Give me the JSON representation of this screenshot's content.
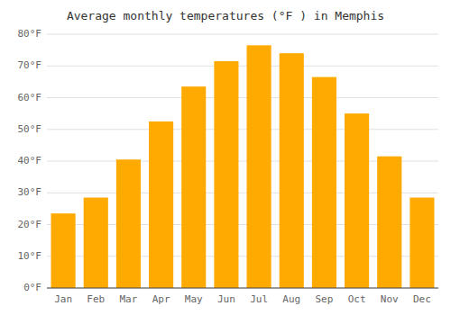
{
  "chart_data": {
    "type": "bar",
    "title": "Average monthly temperatures (°F ) in Memphis",
    "categories": [
      "Jan",
      "Feb",
      "Mar",
      "Apr",
      "May",
      "Jun",
      "Jul",
      "Aug",
      "Sep",
      "Oct",
      "Nov",
      "Dec"
    ],
    "values": [
      23.5,
      28.5,
      40.5,
      52.5,
      63.5,
      71.5,
      76.5,
      74.0,
      66.5,
      55.0,
      41.5,
      28.5
    ],
    "color": "#FFAA00",
    "ylim": [
      0,
      80
    ],
    "yticks": [
      {
        "value": 0,
        "label": "0°F"
      },
      {
        "value": 10,
        "label": "10°F"
      },
      {
        "value": 20,
        "label": "20°F"
      },
      {
        "value": 30,
        "label": "30°F"
      },
      {
        "value": 40,
        "label": "40°F"
      },
      {
        "value": 50,
        "label": "50°F"
      },
      {
        "value": 60,
        "label": "60°F"
      },
      {
        "value": 70,
        "label": "70°F"
      },
      {
        "value": 80,
        "label": "80°F"
      }
    ],
    "grid": true
  }
}
